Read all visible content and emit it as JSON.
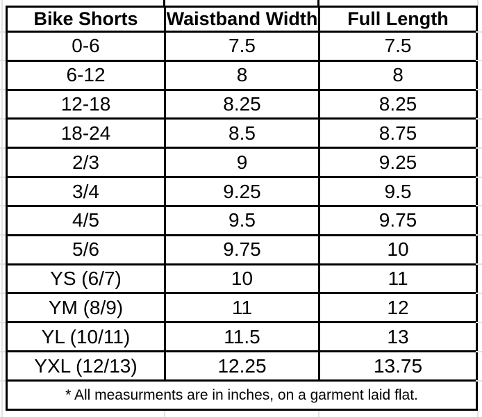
{
  "chart_data": {
    "type": "table",
    "title": "",
    "columns": [
      "Bike Shorts",
      "Waistband Width",
      "Full Length"
    ],
    "rows": [
      [
        "0-6",
        "7.5",
        "7.5"
      ],
      [
        "6-12",
        "8",
        "8"
      ],
      [
        "12-18",
        "8.25",
        "8.25"
      ],
      [
        "18-24",
        "8.5",
        "8.75"
      ],
      [
        "2/3",
        "9",
        "9.25"
      ],
      [
        "3/4",
        "9.25",
        "9.5"
      ],
      [
        "4/5",
        "9.5",
        "9.75"
      ],
      [
        "5/6",
        "9.75",
        "10"
      ],
      [
        "YS (6/7)",
        "10",
        "11"
      ],
      [
        "YM (8/9)",
        "11",
        "12"
      ],
      [
        "YL (10/11)",
        "11.5",
        "13"
      ],
      [
        "YXL (12/13)",
        "12.25",
        "13.75"
      ]
    ],
    "footnote": "* All measurments are in inches, on a garment laid flat."
  },
  "colors": {
    "table_border": "#000000",
    "text": "#000000",
    "background": "#ffffff",
    "gridline": "#e2e2e2"
  }
}
